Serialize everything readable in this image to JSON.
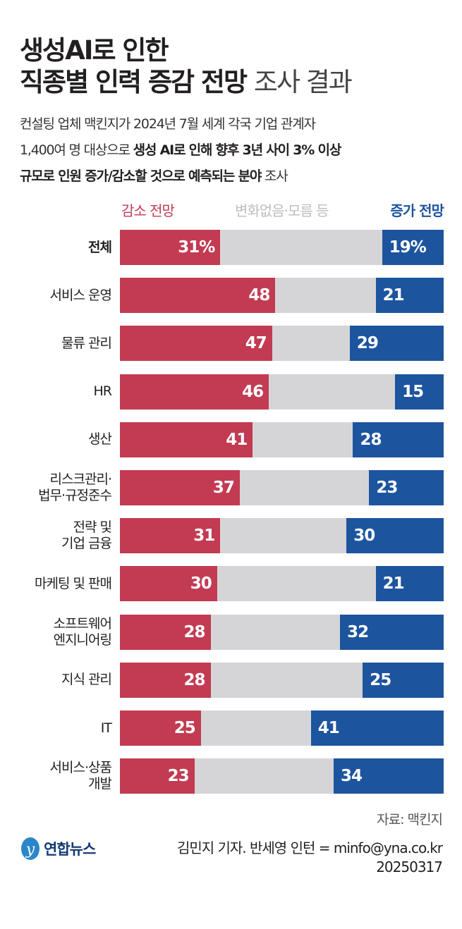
{
  "title": {
    "line1": "생성AI로 인한",
    "line2_bold": "직종별 인력 증감 전망",
    "line2_light": "조사 결과"
  },
  "subtitle": {
    "line1": "컨설팅 업체 맥킨지가 2024년 7월 세계 각국 기업 관계자",
    "line2_plain": "1,400여 명 대상으로 ",
    "line2_bold": "생성 AI로 인해 향후 3년 사이 3% 이상",
    "line3_bold": "규모로 인원 증가/감소할 것으로 예측되는 분야",
    "line3_plain": " 조사"
  },
  "colors": {
    "decrease": "#c23b52",
    "neutral": "#d5d5d7",
    "increase": "#1d549e"
  },
  "chart_data": {
    "type": "bar",
    "stacked": true,
    "orientation": "horizontal",
    "unit": "%",
    "legend": [
      "감소 전망",
      "변화없음·모름 등",
      "증가 전망"
    ],
    "legend_placement": "top",
    "categories": [
      "전체",
      "서비스 운영",
      "물류 관리",
      "HR",
      "생산",
      "리스크관리·\n법무·규정준수",
      "전략 및\n기업 금융",
      "마케팅 및 판매",
      "소프트웨어\n엔지니어링",
      "지식 관리",
      "IT",
      "서비스·상품\n개발"
    ],
    "series": [
      {
        "name": "감소 전망",
        "values": [
          31,
          48,
          47,
          46,
          41,
          37,
          31,
          30,
          28,
          28,
          25,
          23
        ]
      },
      {
        "name": "증가 전망",
        "values": [
          19,
          21,
          29,
          15,
          28,
          23,
          30,
          21,
          32,
          25,
          41,
          34
        ]
      }
    ],
    "labels_first_row": [
      "31%",
      "19%"
    ]
  },
  "footer": {
    "source": "자료: 맥킨지",
    "logo_text": "연합뉴스",
    "credit": "김민지 기자. 반세영 인턴 = minfo@yna.co.kr",
    "date": "20250317"
  }
}
